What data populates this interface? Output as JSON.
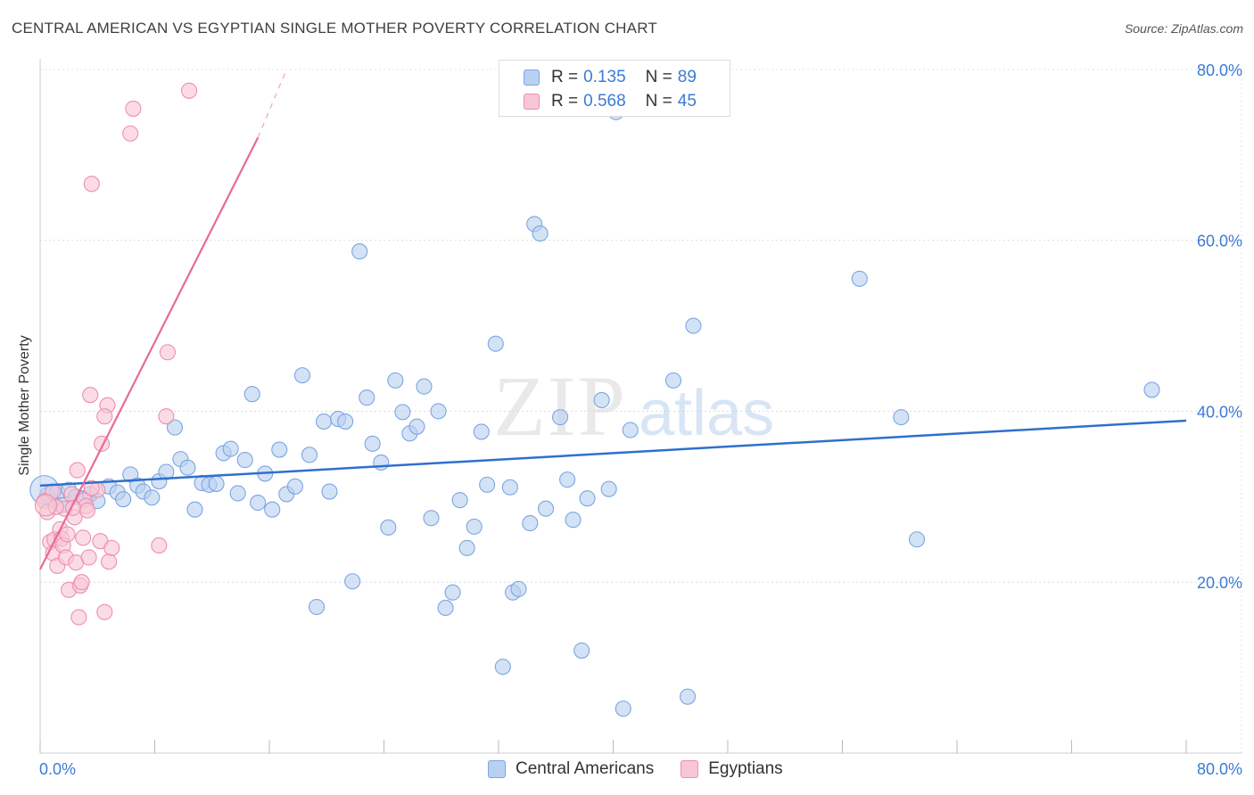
{
  "title": "CENTRAL AMERICAN VS EGYPTIAN SINGLE MOTHER POVERTY CORRELATION CHART",
  "source": "Source: ZipAtlas.com",
  "watermark": {
    "zip": "ZIP",
    "atlas": "atlas"
  },
  "legend_box": {
    "r_label": "R =",
    "n_label": "N =",
    "rows": [
      {
        "r": "0.135",
        "n": "89",
        "fill": "#b9d1f1",
        "stroke": "#7aa6e0"
      },
      {
        "r": "0.568",
        "n": "45",
        "fill": "#f8c6d6",
        "stroke": "#ec8fae"
      }
    ]
  },
  "bottom_legend": [
    {
      "label": "Central Americans",
      "fill": "#b9d1f1",
      "stroke": "#7aa6e0"
    },
    {
      "label": "Egyptians",
      "fill": "#f8c6d6",
      "stroke": "#ec8fae"
    }
  ],
  "chart_data": {
    "type": "scatter",
    "title": "CENTRAL AMERICAN VS EGYPTIAN SINGLE MOTHER POVERTY CORRELATION CHART",
    "xlabel": "",
    "ylabel": "Single Mother Poverty",
    "xlim": [
      0,
      80
    ],
    "ylim": [
      0,
      82
    ],
    "x_tick_labels": [
      "0.0%",
      "80.0%"
    ],
    "y_ticks": [
      20,
      40,
      60,
      80
    ],
    "y_tick_labels": [
      "20.0%",
      "40.0%",
      "60.0%",
      "80.0%"
    ],
    "series": [
      {
        "name": "Central Americans",
        "color": "#7aa6e0",
        "fill": "#b9d1f1",
        "line_color": "#2f6fcd",
        "trend": {
          "x0": 0,
          "y0": 31.3,
          "x1": 80,
          "y1": 38.9
        },
        "points": [
          [
            0.5,
            30.2
          ],
          [
            0.8,
            29.5
          ],
          [
            1.2,
            30.5
          ],
          [
            1.5,
            29.0
          ],
          [
            2.0,
            30.8
          ],
          [
            2.5,
            30.0
          ],
          [
            3.0,
            29.8
          ],
          [
            3.5,
            30.3
          ],
          [
            4.0,
            29.5
          ],
          [
            4.8,
            31.2
          ],
          [
            5.4,
            30.5
          ],
          [
            5.8,
            29.7
          ],
          [
            6.3,
            32.6
          ],
          [
            6.8,
            31.3
          ],
          [
            7.2,
            30.6
          ],
          [
            7.8,
            29.9
          ],
          [
            8.3,
            31.8
          ],
          [
            8.8,
            32.9
          ],
          [
            9.4,
            38.1
          ],
          [
            9.8,
            34.4
          ],
          [
            10.3,
            33.4
          ],
          [
            10.8,
            28.5
          ],
          [
            11.3,
            31.6
          ],
          [
            11.8,
            31.4
          ],
          [
            12.3,
            31.5
          ],
          [
            12.8,
            35.1
          ],
          [
            13.3,
            35.6
          ],
          [
            13.8,
            30.4
          ],
          [
            14.3,
            34.3
          ],
          [
            15.2,
            29.3
          ],
          [
            14.8,
            42.0
          ],
          [
            15.7,
            32.7
          ],
          [
            16.2,
            28.5
          ],
          [
            16.7,
            35.5
          ],
          [
            17.2,
            30.3
          ],
          [
            17.8,
            31.2
          ],
          [
            18.3,
            44.2
          ],
          [
            18.8,
            34.9
          ],
          [
            19.3,
            17.1
          ],
          [
            19.8,
            38.8
          ],
          [
            20.2,
            30.6
          ],
          [
            20.8,
            39.1
          ],
          [
            21.3,
            38.8
          ],
          [
            21.8,
            20.1
          ],
          [
            22.3,
            58.7
          ],
          [
            22.8,
            41.6
          ],
          [
            23.2,
            36.2
          ],
          [
            23.8,
            34.0
          ],
          [
            24.3,
            26.4
          ],
          [
            24.8,
            43.6
          ],
          [
            25.3,
            39.9
          ],
          [
            25.8,
            37.4
          ],
          [
            26.3,
            38.2
          ],
          [
            26.8,
            42.9
          ],
          [
            27.3,
            27.5
          ],
          [
            27.8,
            40.0
          ],
          [
            28.3,
            17.0
          ],
          [
            28.8,
            18.8
          ],
          [
            29.3,
            29.6
          ],
          [
            29.8,
            24.0
          ],
          [
            30.3,
            26.5
          ],
          [
            30.8,
            37.6
          ],
          [
            31.2,
            31.4
          ],
          [
            31.8,
            47.9
          ],
          [
            32.3,
            10.1
          ],
          [
            32.8,
            31.1
          ],
          [
            33.0,
            18.8
          ],
          [
            33.4,
            19.2
          ],
          [
            34.2,
            26.9
          ],
          [
            34.5,
            61.9
          ],
          [
            34.9,
            60.8
          ],
          [
            35.3,
            28.6
          ],
          [
            36.3,
            39.3
          ],
          [
            36.8,
            32.0
          ],
          [
            37.2,
            27.3
          ],
          [
            37.8,
            12.0
          ],
          [
            38.2,
            29.8
          ],
          [
            39.2,
            41.3
          ],
          [
            39.7,
            30.9
          ],
          [
            40.2,
            75.0
          ],
          [
            40.7,
            5.2
          ],
          [
            41.2,
            37.8
          ],
          [
            44.2,
            43.6
          ],
          [
            45.2,
            6.6
          ],
          [
            45.6,
            50.0
          ],
          [
            57.2,
            55.5
          ],
          [
            60.1,
            39.3
          ],
          [
            61.2,
            25.0
          ],
          [
            77.6,
            42.5
          ]
        ]
      },
      {
        "name": "Egyptians",
        "color": "#ec8fae",
        "fill": "#f8c6d6",
        "line_color": "#e76a95",
        "trend": {
          "x0": 0,
          "y0": 21.5,
          "x1": 15.2,
          "y1": 72.0,
          "dash_to": {
            "x1": 17.2,
            "y1": 80.0
          }
        },
        "points": [
          [
            0.3,
            29.5
          ],
          [
            0.5,
            28.2
          ],
          [
            0.7,
            24.7
          ],
          [
            0.9,
            23.4
          ],
          [
            1.0,
            25.0
          ],
          [
            1.2,
            21.9
          ],
          [
            1.4,
            26.2
          ],
          [
            1.5,
            25.1
          ],
          [
            1.6,
            24.3
          ],
          [
            1.7,
            28.6
          ],
          [
            1.8,
            22.9
          ],
          [
            1.9,
            25.6
          ],
          [
            2.0,
            19.1
          ],
          [
            2.2,
            30.3
          ],
          [
            2.4,
            27.6
          ],
          [
            2.5,
            22.3
          ],
          [
            2.6,
            33.1
          ],
          [
            2.7,
            15.9
          ],
          [
            2.8,
            19.6
          ],
          [
            2.9,
            20.0
          ],
          [
            3.0,
            25.2
          ],
          [
            3.1,
            29.6
          ],
          [
            3.2,
            28.9
          ],
          [
            3.3,
            28.4
          ],
          [
            3.4,
            22.9
          ],
          [
            3.5,
            41.9
          ],
          [
            3.6,
            66.6
          ],
          [
            4.0,
            30.8
          ],
          [
            4.2,
            24.8
          ],
          [
            4.3,
            36.2
          ],
          [
            4.5,
            16.5
          ],
          [
            4.7,
            40.7
          ],
          [
            4.8,
            22.4
          ],
          [
            5.0,
            24.0
          ],
          [
            6.3,
            72.5
          ],
          [
            6.5,
            75.4
          ],
          [
            8.3,
            24.3
          ],
          [
            8.8,
            39.4
          ],
          [
            8.9,
            46.9
          ],
          [
            10.4,
            77.5
          ],
          [
            1.1,
            28.8
          ],
          [
            0.9,
            30.6
          ],
          [
            2.3,
            28.7
          ],
          [
            3.6,
            31.0
          ],
          [
            4.5,
            39.4
          ]
        ]
      }
    ]
  }
}
